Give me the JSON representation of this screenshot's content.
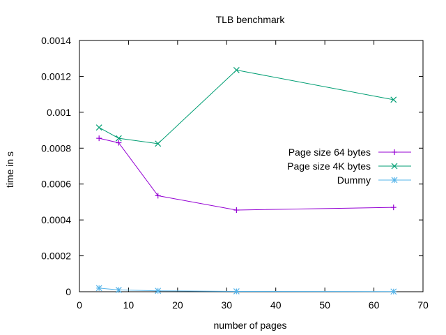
{
  "chart_data": {
    "type": "line",
    "title": "TLB benchmark",
    "xlabel": "number of pages",
    "ylabel": "time in s",
    "xlim": [
      0,
      70
    ],
    "ylim": [
      0,
      0.0014
    ],
    "xticks": [
      0,
      10,
      20,
      30,
      40,
      50,
      60,
      70
    ],
    "xtick_labels": [
      "0",
      "10",
      "20",
      "30",
      "40",
      "50",
      "60",
      "70"
    ],
    "yticks": [
      0,
      0.0002,
      0.0004,
      0.0006,
      0.0008,
      0.001,
      0.0012,
      0.0014
    ],
    "ytick_labels": [
      "0",
      "0.0002",
      "0.0004",
      "0.0006",
      "0.0008",
      "0.001",
      "0.0012",
      "0.0014"
    ],
    "grid": false,
    "legend_position": "right",
    "series": [
      {
        "name": "Page size 64 bytes",
        "color": "#9400d3",
        "marker": "plus",
        "x": [
          4,
          8,
          16,
          32,
          64
        ],
        "y": [
          0.000855,
          0.00083,
          0.000535,
          0.000455,
          0.00047
        ]
      },
      {
        "name": "Page size 4K bytes",
        "color": "#009e73",
        "marker": "cross",
        "x": [
          4,
          8,
          16,
          32,
          64
        ],
        "y": [
          0.000915,
          0.000855,
          0.000825,
          0.001235,
          0.00107
        ]
      },
      {
        "name": "Dummy",
        "color": "#56b4e9",
        "marker": "star",
        "x": [
          4,
          8,
          16,
          32,
          64
        ],
        "y": [
          2e-05,
          1e-05,
          5e-06,
          2e-06,
          1e-06
        ]
      }
    ]
  }
}
